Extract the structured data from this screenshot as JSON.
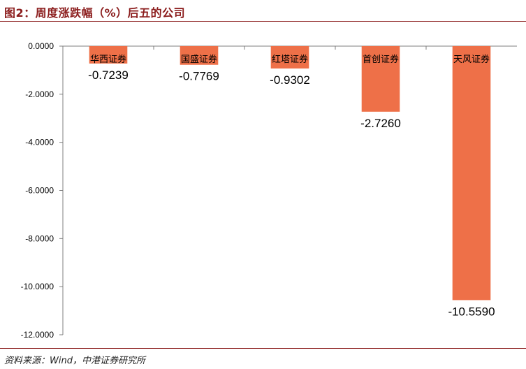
{
  "figure": {
    "title": "图2：周度涨跌幅（%）后五的公司",
    "source": "资料来源：Wind，中港证券研究所"
  },
  "colors": {
    "bar": "#ee7048",
    "title": "#8b1c1c",
    "rule": "#8b1c1c",
    "axis": "#7f7f7f"
  },
  "chart_data": {
    "type": "bar",
    "title": "",
    "xlabel": "",
    "ylabel": "",
    "categories": [
      "华西证券",
      "国盛证券",
      "红塔证券",
      "首创证券",
      "天风证券"
    ],
    "values": [
      -0.7239,
      -0.7769,
      -0.9302,
      -2.726,
      -10.559
    ],
    "data_labels": [
      "-0.7239",
      "-0.7769",
      "-0.9302",
      "-2.7260",
      "-10.5590"
    ],
    "ylim": [
      -12,
      0
    ],
    "yticks": [
      0,
      -2,
      -4,
      -6,
      -8,
      -10,
      -12
    ],
    "ytick_labels": [
      "0.0000",
      "-2.0000",
      "-4.0000",
      "-6.0000",
      "-8.0000",
      "-10.0000",
      "-12.0000"
    ],
    "grid": false,
    "legend": "none",
    "category_labels_position": "top"
  }
}
